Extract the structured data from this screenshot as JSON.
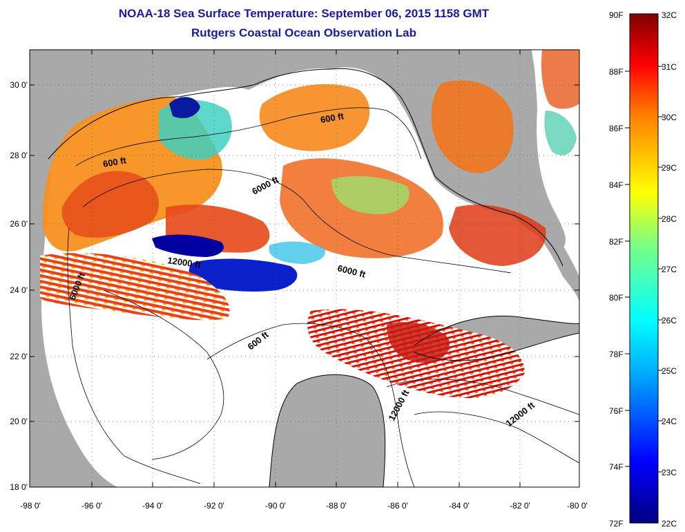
{
  "header": {
    "title": "NOAA-18 Sea Surface Temperature:  September 06, 2015 1158 GMT",
    "subtitle": "Rutgers Coastal Ocean Observation Lab"
  },
  "axes": {
    "lat_labels": [
      "30 0'",
      "28 0'",
      "26 0'",
      "24 0'",
      "22 0'",
      "20 0'",
      "18 0'"
    ],
    "lon_labels": [
      "-98 0'",
      "-96 0'",
      "-94 0'",
      "-92 0'",
      "-90 0'",
      "-88 0'",
      "-86 0'",
      "-84 0'",
      "-82 0'",
      "-80 0'"
    ]
  },
  "depth_labels": [
    "600 ft",
    "6000 ft",
    "12000 ft",
    "6000 ft",
    "6000 ft",
    "600 ft",
    "600 ft",
    "12000 ft",
    "12000 ft"
  ],
  "colorbar": {
    "f_labels": [
      "90F",
      "88F",
      "86F",
      "84F",
      "82F",
      "80F",
      "78F",
      "76F",
      "74F",
      "72F"
    ],
    "c_labels": [
      "32C",
      "31C",
      "30C",
      "29C",
      "28C",
      "27C",
      "26C",
      "25C",
      "24C",
      "23C",
      "22C"
    ]
  },
  "colors": {
    "land": "#a9a9a9",
    "no_data": "#ffffff",
    "title": "#1a1aa0"
  }
}
